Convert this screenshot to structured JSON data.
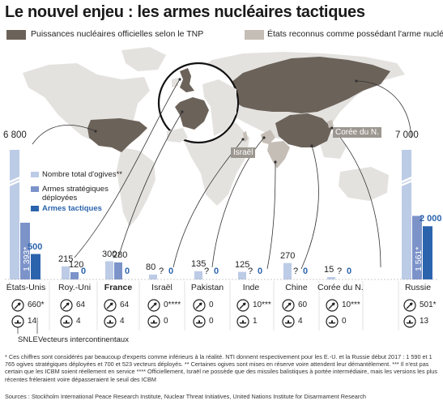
{
  "title": "Le nouvel enjeu : les armes nucléaires tactiques",
  "map_legend": {
    "official": "Puissances nucléaires officielles selon le TNP",
    "recognized": "États reconnus comme possédant l'arme nucléaire"
  },
  "colors": {
    "official": "#6b625a",
    "recognized": "#c5beb6",
    "world": "#e4e2df",
    "total": "#bccbe6",
    "strategic": "#7c93c9",
    "tactical": "#2b64ad",
    "circle": "#111111"
  },
  "map_tags": {
    "israel": "Israël",
    "north_korea": "Corée du N."
  },
  "bar_legend": {
    "total": "Nombre total d'ogives**",
    "strategic": "Armes stratégiques déployées",
    "tactical": "Armes tactiques"
  },
  "vector_legend": {
    "snle": "SNLE",
    "icbm": "Vecteurs intercontinentaux",
    "snle_icon": "submarine-icon",
    "icbm_icon": "missile-icon"
  },
  "chart_data": {
    "type": "bar",
    "series": [
      {
        "name": "Nombre total d'ogives**"
      },
      {
        "name": "Armes stratégiques déployées"
      },
      {
        "name": "Armes tactiques"
      }
    ],
    "countries": [
      {
        "name": "États-Unis",
        "total": 6800,
        "total_label": "6 800",
        "strategic": 1393,
        "strategic_label": "1 393*",
        "tactical": 500,
        "tactical_label": "500",
        "snle": "14",
        "icbm": "660*",
        "bold": false
      },
      {
        "name": "Roy.-Uni",
        "total": 215,
        "total_label": "215",
        "strategic": 120,
        "strategic_label": "120",
        "tactical": 0,
        "tactical_label": "0",
        "snle": "4",
        "icbm": "64",
        "bold": false
      },
      {
        "name": "France",
        "total": 300,
        "total_label": "300",
        "strategic": 280,
        "strategic_label": "280",
        "tactical": 0,
        "tactical_label": "0",
        "snle": "4",
        "icbm": "64",
        "bold": true
      },
      {
        "name": "Israël",
        "total": 80,
        "total_label": "80",
        "strategic": null,
        "strategic_label": "?",
        "tactical": 0,
        "tactical_label": "0",
        "snle": "0",
        "icbm": "0****",
        "bold": false
      },
      {
        "name": "Pakistan",
        "total": 135,
        "total_label": "135",
        "strategic": null,
        "strategic_label": "?",
        "tactical": 0,
        "tactical_label": "0",
        "snle": "0",
        "icbm": "0",
        "bold": false
      },
      {
        "name": "Inde",
        "total": 125,
        "total_label": "125",
        "strategic": null,
        "strategic_label": "?",
        "tactical": 0,
        "tactical_label": "0",
        "snle": "1",
        "icbm": "10***",
        "bold": false
      },
      {
        "name": "Chine",
        "total": 270,
        "total_label": "270",
        "strategic": null,
        "strategic_label": "?",
        "tactical": 0,
        "tactical_label": "0",
        "snle": "4",
        "icbm": "60",
        "bold": false
      },
      {
        "name": "Corée du N.",
        "total": 15,
        "total_label": "15",
        "strategic": null,
        "strategic_label": "?",
        "tactical": 0,
        "tactical_label": "0",
        "snle": "0",
        "icbm": "10***",
        "bold": false
      },
      {
        "name": "Russie",
        "total": 7000,
        "total_label": "7 000",
        "strategic": 1561,
        "strategic_label": "1 561*",
        "tactical": 2000,
        "tactical_label": "2 000",
        "snle": "13",
        "icbm": "501*",
        "bold": false
      }
    ]
  },
  "footnote": "* Ces chiffres sont considérés par beaucoup d'experts comme inférieurs à la réalité. NTI donnent respectivement pour les E.-U. et la Russie début 2017 : 1 590 et 1 765 ogives stratégiques déployées et 700 et 523 vecteurs déployés. ** Certaines ogives sont mises en réserve voire attendent leur démantèlement. *** Il n'est pas certain que les ICBM soient réellement en service **** Officiellement, Israël ne possède que des missiles balistiques à portée intermédiaire, mais les versions les plus récentes fréleraient voire dépasseraient le seuil des ICBM",
  "sources": "Sources : Stockholm International Peace Research Institute, Nuclear Threat Initiatives, United Nations Institute for Disarmament Research"
}
